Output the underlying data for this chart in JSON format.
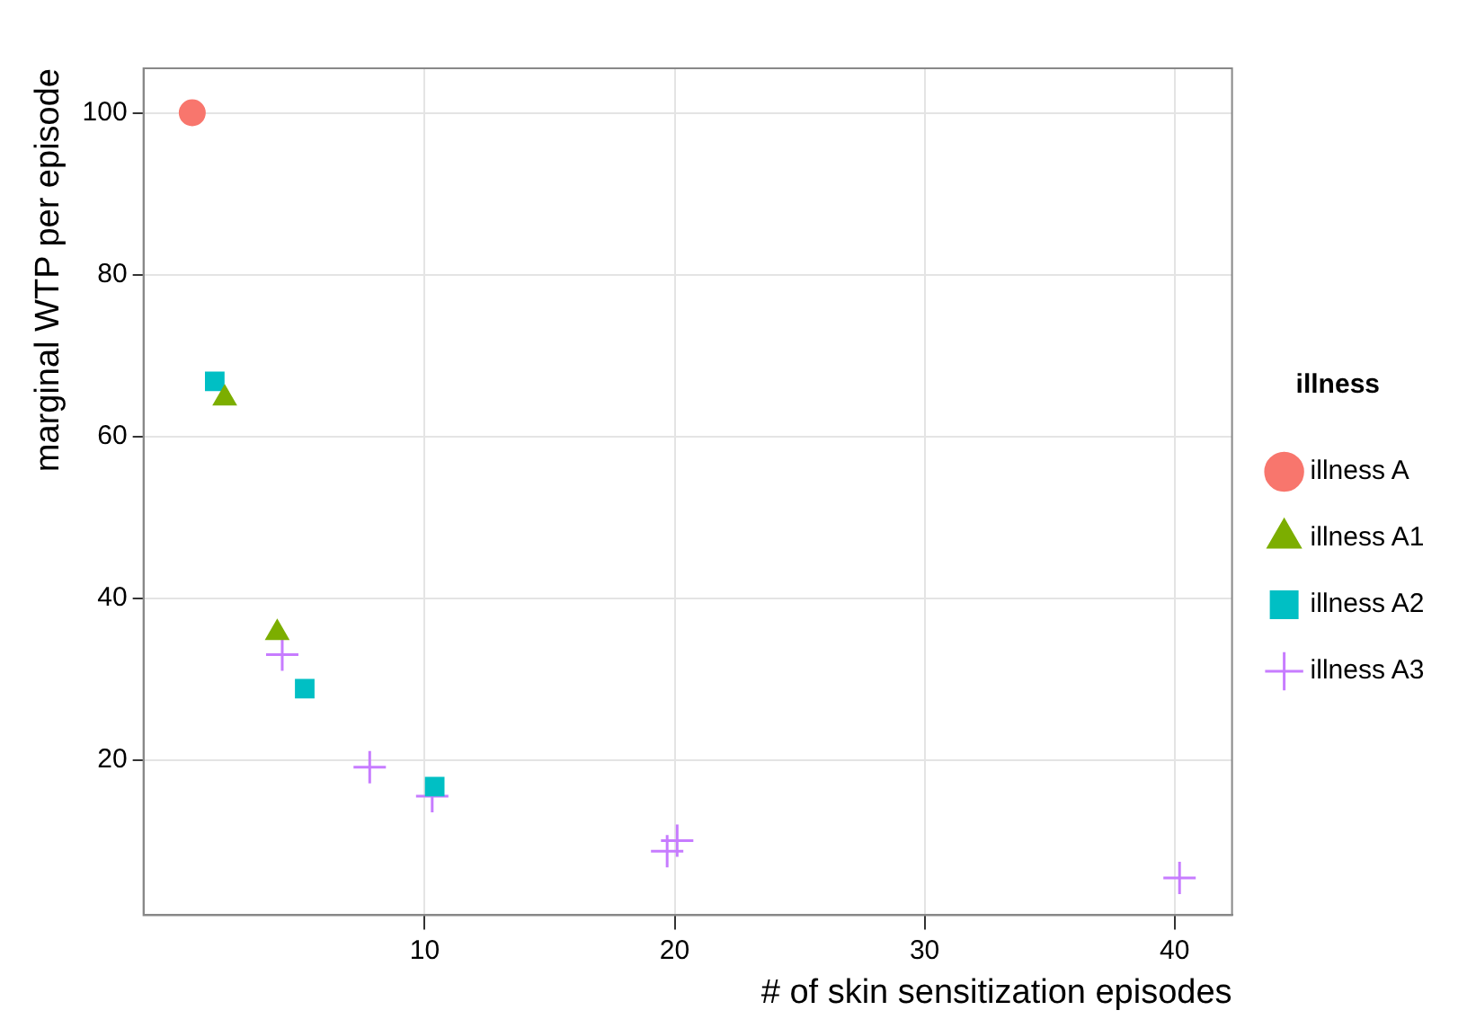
{
  "chart_data": {
    "type": "scatter",
    "xlabel": "# of skin sensitization episodes",
    "ylabel": "marginal WTP per episode",
    "legend_title": "illness",
    "legend": "right",
    "grid": true,
    "xlim": [
      -1.25,
      42.3
    ],
    "xticks": [
      10,
      20,
      30,
      40
    ],
    "ylim": [
      0.8,
      105.5
    ],
    "yticks": [
      20,
      40,
      60,
      80,
      100
    ],
    "series": [
      {
        "name": "illness A",
        "color": "#f8766d",
        "marker": "circle",
        "x": [
          0.7
        ],
        "values": [
          100
        ]
      },
      {
        "name": "illness A1",
        "color": "#7cae00",
        "marker": "triangle",
        "x": [
          2.0,
          4.1
        ],
        "values": [
          64.7,
          35.7
        ]
      },
      {
        "name": "illness A2",
        "color": "#00bfc4",
        "marker": "square",
        "x": [
          1.6,
          5.2,
          10.4
        ],
        "values": [
          66.8,
          28.8,
          16.7
        ]
      },
      {
        "name": "illness A3",
        "color": "#c77cff",
        "marker": "cross",
        "x": [
          4.3,
          7.8,
          10.3,
          19.7,
          20.1,
          40.2
        ],
        "values": [
          33.0,
          19.1,
          15.5,
          8.7,
          10.0,
          5.4
        ]
      }
    ]
  }
}
